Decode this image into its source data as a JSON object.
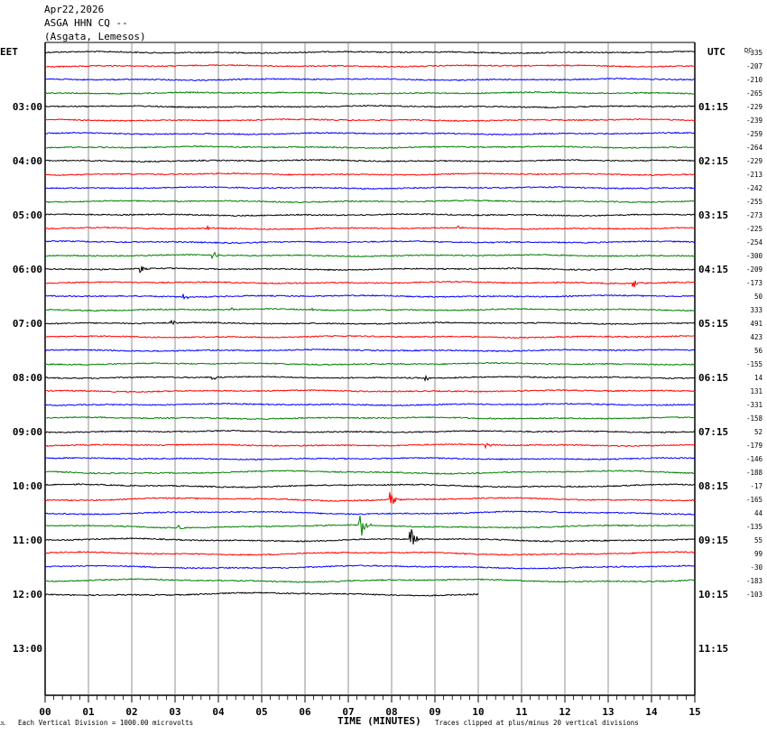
{
  "header": {
    "date": "Apr22,2026",
    "station": "ASGA HHN CQ --",
    "location": "(Asgata, Lemesos)"
  },
  "axis": {
    "left_zone": "EET",
    "right_zone": "UTC",
    "dc_label": "DC",
    "xlabel": "TIME (MINUTES)",
    "footer_left": "Each Vertical Division = 1000.00 microvolts",
    "footer_right": "Traces clipped at plus/minus 20 vertical divisions",
    "footer_mark": "JL"
  },
  "chart_data": {
    "type": "line",
    "title": "ASGA HHN CQ --",
    "x_ticks": [
      "00",
      "01",
      "02",
      "03",
      "04",
      "05",
      "06",
      "07",
      "08",
      "09",
      "10",
      "11",
      "12",
      "13",
      "14",
      "15"
    ],
    "xlim": [
      0,
      15
    ],
    "left_hour_labels": [
      "03:00",
      "04:00",
      "05:00",
      "06:00",
      "07:00",
      "08:00",
      "09:00",
      "10:00",
      "11:00",
      "12:00",
      "13:00"
    ],
    "right_hour_labels": [
      "01:15",
      "02:15",
      "03:15",
      "04:15",
      "05:15",
      "06:15",
      "07:15",
      "08:15",
      "09:15",
      "10:15",
      "11:15"
    ],
    "trace_colors": [
      "#000000",
      "#ff0000",
      "#0000ff",
      "#008000"
    ],
    "dc_offsets": [
      -335,
      -207,
      -210,
      -265,
      -229,
      -239,
      -259,
      -264,
      -229,
      -213,
      -242,
      -255,
      -273,
      -225,
      -254,
      -300,
      -209,
      -173,
      50,
      333,
      491,
      423,
      56,
      -155,
      14,
      131,
      -331,
      -158,
      52,
      -179,
      -146,
      -188,
      -17,
      -165,
      44,
      -135,
      55,
      99,
      -30,
      -183,
      -103
    ],
    "last_trace_end_minute": 10,
    "events": [
      {
        "trace": 13,
        "minute": 3.8,
        "amp": 3
      },
      {
        "trace": 13,
        "minute": 9.5,
        "amp": 3
      },
      {
        "trace": 15,
        "minute": 3.9,
        "amp": 4
      },
      {
        "trace": 16,
        "minute": 2.2,
        "amp": 6
      },
      {
        "trace": 17,
        "minute": 13.6,
        "amp": 5
      },
      {
        "trace": 18,
        "minute": 3.2,
        "amp": 4
      },
      {
        "trace": 19,
        "minute": 4.3,
        "amp": 3
      },
      {
        "trace": 19,
        "minute": 6.2,
        "amp": 3
      },
      {
        "trace": 20,
        "minute": 2.9,
        "amp": 4
      },
      {
        "trace": 24,
        "minute": 3.9,
        "amp": 3
      },
      {
        "trace": 24,
        "minute": 8.8,
        "amp": 3
      },
      {
        "trace": 29,
        "minute": 10.2,
        "amp": 3
      },
      {
        "trace": 33,
        "minute": 8.0,
        "amp": 9
      },
      {
        "trace": 35,
        "minute": 3.1,
        "amp": 3
      },
      {
        "trace": 35,
        "minute": 7.3,
        "amp": 14
      },
      {
        "trace": 36,
        "minute": 8.45,
        "amp": 14
      }
    ]
  }
}
